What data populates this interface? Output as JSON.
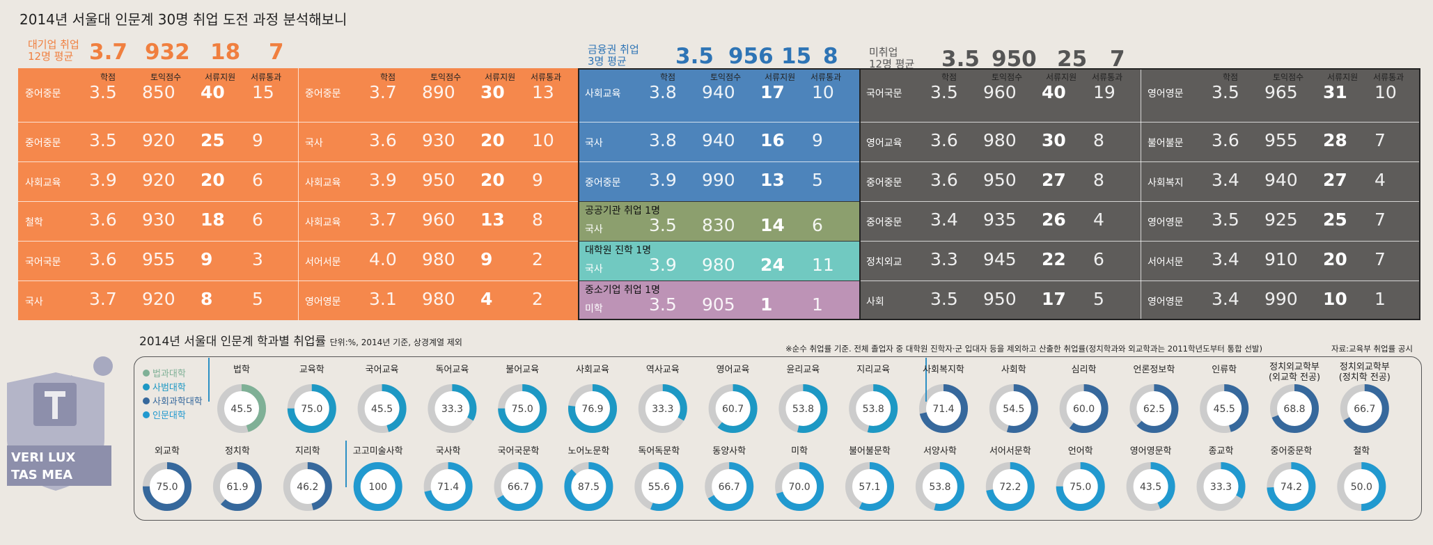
{
  "title": "2014년 서울대 인문계 30명 취업 도전 과정 분석해보니",
  "colors": {
    "orange": "#f5884c",
    "blue": "#4d84bb",
    "green": "#8c9f6e",
    "teal": "#71c9c1",
    "pink": "#bd93b6",
    "gray": "#5e5c5a"
  },
  "groups": {
    "bigcorp": {
      "label1": "대기업 취업",
      "label2": "12명 평균",
      "nums": [
        "3.7",
        "932",
        "18",
        "7"
      ]
    },
    "finance": {
      "label1": "금융권 취업",
      "label2": "3명 평균",
      "nums": [
        "3.5",
        "956",
        "15",
        "8"
      ]
    },
    "unemployed": {
      "label1": "미취업",
      "label2": "12명 평균",
      "nums": [
        "3.5",
        "950",
        "25",
        "7"
      ]
    }
  },
  "headers": [
    "학점",
    "토익점수",
    "서류지원",
    "서류통과"
  ],
  "blocks": [
    {
      "rows": [
        [
          "중어중문",
          "3.5",
          "850",
          "40",
          "15"
        ],
        [
          "중어중문",
          "3.5",
          "920",
          "25",
          "9"
        ],
        [
          "사회교육",
          "3.9",
          "920",
          "20",
          "6"
        ],
        [
          "철학",
          "3.6",
          "930",
          "18",
          "6"
        ],
        [
          "국어국문",
          "3.6",
          "955",
          "9",
          "3"
        ],
        [
          "국사",
          "3.7",
          "920",
          "8",
          "5"
        ]
      ]
    },
    {
      "rows": [
        [
          "중어중문",
          "3.7",
          "890",
          "30",
          "13"
        ],
        [
          "국사",
          "3.6",
          "930",
          "20",
          "10"
        ],
        [
          "사회교육",
          "3.9",
          "950",
          "20",
          "9"
        ],
        [
          "사회교육",
          "3.7",
          "960",
          "13",
          "8"
        ],
        [
          "서어서문",
          "4.0",
          "980",
          "9",
          "2"
        ],
        [
          "영어영문",
          "3.1",
          "980",
          "4",
          "2"
        ]
      ]
    },
    {
      "rows": [
        [
          "사회교육",
          "3.8",
          "940",
          "17",
          "10"
        ],
        [
          "국사",
          "3.8",
          "940",
          "16",
          "9"
        ],
        [
          "중어중문",
          "3.9",
          "990",
          "13",
          "5"
        ],
        [
          "국사",
          "3.5",
          "830",
          "14",
          "6"
        ],
        [
          "국사",
          "3.9",
          "980",
          "24",
          "11"
        ],
        [
          "미학",
          "3.5",
          "905",
          "1",
          "1"
        ]
      ],
      "sub": [
        "공공기관 취업 1명",
        "대학원 진학 1명",
        "중소기업 취업 1명"
      ]
    },
    {
      "rows": [
        [
          "국어국문",
          "3.5",
          "960",
          "40",
          "19"
        ],
        [
          "영어교육",
          "3.6",
          "980",
          "30",
          "8"
        ],
        [
          "중어중문",
          "3.6",
          "950",
          "27",
          "8"
        ],
        [
          "중어중문",
          "3.4",
          "935",
          "26",
          "4"
        ],
        [
          "정치외교",
          "3.3",
          "945",
          "22",
          "6"
        ],
        [
          "사회",
          "3.5",
          "950",
          "17",
          "5"
        ]
      ]
    },
    {
      "rows": [
        [
          "영어영문",
          "3.5",
          "965",
          "31",
          "10"
        ],
        [
          "불어불문",
          "3.6",
          "955",
          "28",
          "7"
        ],
        [
          "사회복지",
          "3.4",
          "940",
          "27",
          "4"
        ],
        [
          "영어영문",
          "3.5",
          "925",
          "25",
          "7"
        ],
        [
          "서어서문",
          "3.4",
          "910",
          "20",
          "7"
        ],
        [
          "영어영문",
          "3.4",
          "990",
          "10",
          "1"
        ]
      ]
    }
  ],
  "section2": {
    "title": "2014년 서울대 인문계 학과별 취업률",
    "unit": "단위:%, 2014년 기준, 상경계열 제외",
    "note": "※순수 취업률 기준. 전체 졸업자 중 대학원 진학자·군 입대자 등을 제외하고 산출한 취업률(정치학과와 외교학과는 2011학년도부터 통합 선발)",
    "source": "자료:교육부 취업률 공시"
  },
  "legend": [
    {
      "label": "법과대학",
      "color": "#7fb096"
    },
    {
      "label": "사범대학",
      "color": "#1d98c4"
    },
    {
      "label": "사회과학대학",
      "color": "#36689c"
    },
    {
      "label": "인문대학",
      "color": "#2199cf"
    }
  ],
  "seal": {
    "top": "VERI LUX",
    "bottom": "TAS MEA"
  },
  "chart_data": {
    "type": "donut",
    "title": "2014년 서울대 인문계 학과별 취업률",
    "unit": "%",
    "rows": [
      [
        {
          "name": "법학",
          "value": 45.5,
          "college": "법과대학"
        },
        {
          "name": "교육학",
          "value": 75.0,
          "college": "사범대학"
        },
        {
          "name": "국어교육",
          "value": 45.5,
          "college": "사범대학"
        },
        {
          "name": "독어교육",
          "value": 33.3,
          "college": "사범대학"
        },
        {
          "name": "불어교육",
          "value": 75.0,
          "college": "사범대학"
        },
        {
          "name": "사회교육",
          "value": 76.9,
          "college": "사범대학"
        },
        {
          "name": "역사교육",
          "value": 33.3,
          "college": "사범대학"
        },
        {
          "name": "영어교육",
          "value": 60.7,
          "college": "사범대학"
        },
        {
          "name": "윤리교육",
          "value": 53.8,
          "college": "사범대학"
        },
        {
          "name": "지리교육",
          "value": 53.8,
          "college": "사범대학"
        },
        {
          "name": "사회복지학",
          "value": 71.4,
          "college": "사회과학대학"
        },
        {
          "name": "사회학",
          "value": 54.5,
          "college": "사회과학대학"
        },
        {
          "name": "심리학",
          "value": 60.0,
          "college": "사회과학대학"
        },
        {
          "name": "언론정보학",
          "value": 62.5,
          "college": "사회과학대학"
        },
        {
          "name": "인류학",
          "value": 45.5,
          "college": "사회과학대학"
        },
        {
          "name": "정치외교학부\n(외교학 전공)",
          "value": 68.8,
          "college": "사회과학대학"
        },
        {
          "name": "정치외교학부\n(정치학 전공)",
          "value": 66.7,
          "college": "사회과학대학"
        }
      ],
      [
        {
          "name": "외교학",
          "value": 75.0,
          "college": "사회과학대학"
        },
        {
          "name": "정치학",
          "value": 61.9,
          "college": "사회과학대학"
        },
        {
          "name": "지리학",
          "value": 46.2,
          "college": "사회과학대학"
        },
        {
          "name": "고고미술사학",
          "value": 100,
          "college": "인문대학"
        },
        {
          "name": "국사학",
          "value": 71.4,
          "college": "인문대학"
        },
        {
          "name": "국어국문학",
          "value": 66.7,
          "college": "인문대학"
        },
        {
          "name": "노어노문학",
          "value": 87.5,
          "college": "인문대학"
        },
        {
          "name": "독어독문학",
          "value": 55.6,
          "college": "인문대학"
        },
        {
          "name": "동양사학",
          "value": 66.7,
          "college": "인문대학"
        },
        {
          "name": "미학",
          "value": 70.0,
          "college": "인문대학"
        },
        {
          "name": "불어불문학",
          "value": 57.1,
          "college": "인문대학"
        },
        {
          "name": "서양사학",
          "value": 53.8,
          "college": "인문대학"
        },
        {
          "name": "서어서문학",
          "value": 72.2,
          "college": "인문대학"
        },
        {
          "name": "언어학",
          "value": 75.0,
          "college": "인문대학"
        },
        {
          "name": "영어영문학",
          "value": 43.5,
          "college": "인문대학"
        },
        {
          "name": "종교학",
          "value": 33.3,
          "college": "인문대학"
        },
        {
          "name": "중어중문학",
          "value": 74.2,
          "college": "인문대학"
        },
        {
          "name": "철학",
          "value": 50.0,
          "college": "인문대학"
        }
      ]
    ]
  }
}
